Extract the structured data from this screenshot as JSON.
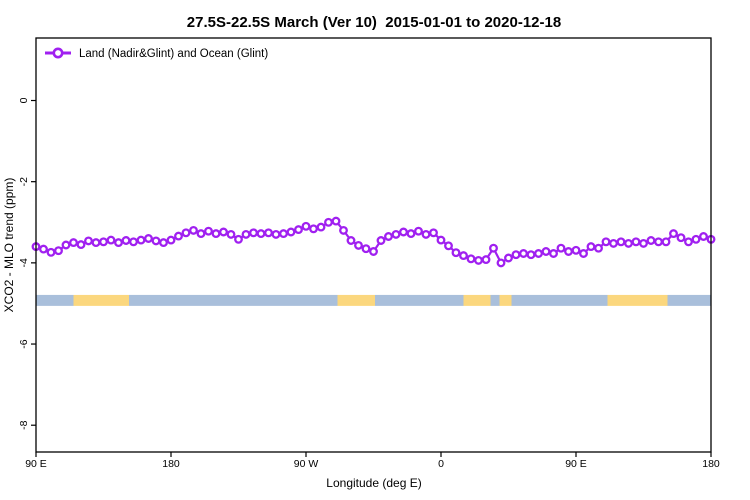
{
  "figure": {
    "title": "27.5S-22.5S March (Ver 10)  2015-01-01 to 2020-12-18",
    "legend_label": "Land (Nadir&Glint) and Ocean (Glint)",
    "xlabel": "Longitude (deg E)",
    "ylabel": "XCO2 - MLO trend (ppm)"
  },
  "chart_data": {
    "type": "line",
    "title": "27.5S-22.5S March (Ver 10)  2015-01-01 to 2020-12-18",
    "xlabel": "Longitude (deg E)",
    "ylabel": "XCO2 - MLO trend (ppm)",
    "legend": [
      {
        "label": "Land (Nadir&Glint) and Ocean (Glint)",
        "color": "#A020F0",
        "marker": "open-circle",
        "position": "top-left",
        "box": false
      }
    ],
    "grid": false,
    "xlim": [
      -270,
      180
    ],
    "ylim": [
      -8.66,
      1.54
    ],
    "x_ticks": [
      {
        "value": -270,
        "label": "90 E"
      },
      {
        "value": -180,
        "label": "180"
      },
      {
        "value": -90,
        "label": "90 W"
      },
      {
        "value": 0,
        "label": "0"
      },
      {
        "value": 90,
        "label": "90 E"
      },
      {
        "value": 180,
        "label": "180"
      }
    ],
    "y_ticks": [
      {
        "value": 0,
        "label": "0"
      },
      {
        "value": -2,
        "label": "-2"
      },
      {
        "value": -4,
        "label": "-4"
      },
      {
        "value": -6,
        "label": "-6"
      },
      {
        "value": -8,
        "label": "-8"
      }
    ],
    "series": [
      {
        "name": "Land (Nadir&Glint) and Ocean (Glint)",
        "color": "#A020F0",
        "marker": "open-circle",
        "x_start": -270,
        "x_step": 5,
        "values": [
          -3.6,
          -3.66,
          -3.74,
          -3.7,
          -3.56,
          -3.5,
          -3.55,
          -3.46,
          -3.5,
          -3.48,
          -3.44,
          -3.5,
          -3.45,
          -3.48,
          -3.44,
          -3.4,
          -3.46,
          -3.5,
          -3.44,
          -3.34,
          -3.26,
          -3.2,
          -3.28,
          -3.22,
          -3.28,
          -3.24,
          -3.3,
          -3.42,
          -3.3,
          -3.26,
          -3.28,
          -3.26,
          -3.3,
          -3.28,
          -3.24,
          -3.18,
          -3.1,
          -3.16,
          -3.12,
          -3.0,
          -2.97,
          -3.2,
          -3.45,
          -3.57,
          -3.65,
          -3.72,
          -3.45,
          -3.35,
          -3.3,
          -3.24,
          -3.28,
          -3.22,
          -3.3,
          -3.26,
          -3.44,
          -3.58,
          -3.75,
          -3.82,
          -3.9,
          -3.94,
          -3.92,
          -3.64,
          -4.0,
          -3.88,
          -3.8,
          -3.77,
          -3.8,
          -3.77,
          -3.72,
          -3.77,
          -3.64,
          -3.72,
          -3.69,
          -3.77,
          -3.6,
          -3.64,
          -3.48,
          -3.52,
          -3.48,
          -3.52,
          -3.48,
          -3.52,
          -3.45,
          -3.48,
          -3.48,
          -3.28,
          -3.38,
          -3.48,
          -3.42,
          -3.35,
          -3.42
        ]
      }
    ],
    "surface_band": {
      "description": "land/ocean surface type strip",
      "value_top": -4.79,
      "value_bottom": -5.06,
      "ocean_color": "#A9BFDB",
      "land_color": "#FBD77E",
      "segments": [
        {
          "lon_from": -270,
          "lon_to": -245,
          "surface": "ocean"
        },
        {
          "lon_from": -245,
          "lon_to": -208,
          "surface": "land"
        },
        {
          "lon_from": -208,
          "lon_to": -69,
          "surface": "ocean"
        },
        {
          "lon_from": -69,
          "lon_to": -44,
          "surface": "land"
        },
        {
          "lon_from": -44,
          "lon_to": 15,
          "surface": "ocean"
        },
        {
          "lon_from": 15,
          "lon_to": 33,
          "surface": "land"
        },
        {
          "lon_from": 33,
          "lon_to": 39,
          "surface": "ocean"
        },
        {
          "lon_from": 39,
          "lon_to": 47,
          "surface": "land"
        },
        {
          "lon_from": 47,
          "lon_to": 111,
          "surface": "ocean"
        },
        {
          "lon_from": 111,
          "lon_to": 151,
          "surface": "land"
        },
        {
          "lon_from": 151,
          "lon_to": 180,
          "surface": "ocean"
        }
      ]
    }
  }
}
